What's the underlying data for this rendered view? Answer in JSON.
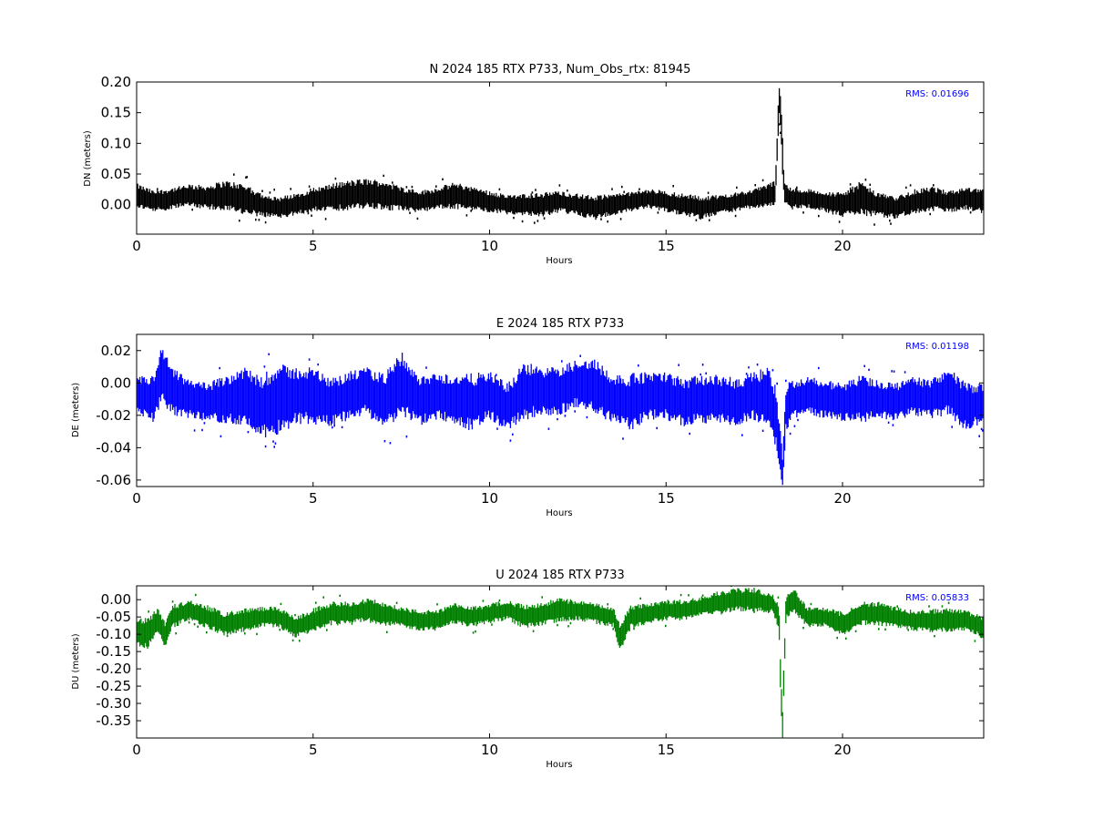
{
  "chart_data": [
    {
      "type": "scatter",
      "title": "N 2024 185 RTX  P733, Num_Obs_rtx: 81945",
      "xlabel": "Hours",
      "ylabel": "DN (meters)",
      "xlim": [
        0,
        24
      ],
      "ylim": [
        -0.048,
        0.2
      ],
      "xticks": [
        "0",
        "5",
        "10",
        "15",
        "20"
      ],
      "yticks": [
        "0.20",
        "0.15",
        "0.10",
        "0.05",
        "0.00"
      ],
      "annotation": "RMS:  0.01696",
      "color": "#000000",
      "series": [
        {
          "x": [
            0,
            0.5,
            1,
            1.5,
            2,
            2.5,
            3,
            3.5,
            4,
            4.5,
            5,
            5.5,
            6,
            6.5,
            7,
            7.5,
            8,
            8.5,
            9,
            9.5,
            10,
            10.5,
            11,
            11.5,
            12,
            12.5,
            13,
            13.5,
            14,
            14.5,
            15,
            15.5,
            16,
            16.5,
            17,
            17.5,
            17.9,
            18.1,
            18.2,
            18.25,
            18.3,
            18.35,
            18.5,
            19,
            19.5,
            20,
            20.5,
            21,
            21.5,
            22,
            22.5,
            23,
            23.5,
            24
          ],
          "y": [
            0.015,
            0.005,
            0.01,
            0.015,
            0.012,
            0.015,
            0.01,
            0.0,
            -0.005,
            0.0,
            0.008,
            0.012,
            0.015,
            0.018,
            0.015,
            0.01,
            0.005,
            0.01,
            0.015,
            0.01,
            0.005,
            0.0,
            0.0,
            0.0,
            0.005,
            0.0,
            -0.005,
            0.0,
            0.005,
            0.01,
            0.005,
            0.0,
            -0.005,
            0.0,
            0.005,
            0.01,
            0.015,
            0.02,
            0.17,
            0.15,
            0.08,
            0.02,
            0.01,
            0.01,
            0.005,
            0.0,
            0.01,
            0.0,
            -0.005,
            0.005,
            0.01,
            0.005,
            0.01,
            0.005
          ],
          "spread": [
            0.02,
            0.018,
            0.018,
            0.018,
            0.02,
            0.025,
            0.025,
            0.02,
            0.018,
            0.018,
            0.02,
            0.022,
            0.025,
            0.025,
            0.025,
            0.02,
            0.018,
            0.018,
            0.022,
            0.02,
            0.018,
            0.016,
            0.018,
            0.02,
            0.018,
            0.018,
            0.02,
            0.018,
            0.016,
            0.016,
            0.018,
            0.018,
            0.02,
            0.016,
            0.016,
            0.016,
            0.02,
            0.02,
            0.03,
            0.03,
            0.04,
            0.02,
            0.018,
            0.016,
            0.018,
            0.02,
            0.028,
            0.02,
            0.018,
            0.02,
            0.02,
            0.018,
            0.018,
            0.02
          ]
        }
      ]
    },
    {
      "type": "scatter",
      "title": "E 2024 185 RTX  P733",
      "xlabel": "Hours",
      "ylabel": "DE (meters)",
      "xlim": [
        0,
        24
      ],
      "ylim": [
        -0.064,
        0.03
      ],
      "xticks": [
        "0",
        "5",
        "10",
        "15",
        "20"
      ],
      "yticks": [
        "0.02",
        "0.00",
        "-0.02",
        "-0.04",
        "-0.06"
      ],
      "annotation": "RMS:  0.01198",
      "color": "#0000ff",
      "series": [
        {
          "x": [
            0,
            0.5,
            0.7,
            1,
            1.5,
            2,
            2.5,
            3,
            3.5,
            4,
            4.5,
            5,
            5.5,
            6,
            6.5,
            7,
            7.5,
            8,
            8.5,
            9,
            9.5,
            10,
            10.5,
            11,
            11.5,
            12,
            12.5,
            13,
            13.5,
            14,
            14.5,
            15,
            15.5,
            16,
            16.5,
            17,
            17.5,
            17.9,
            18.1,
            18.25,
            18.3,
            18.4,
            18.6,
            19,
            19.5,
            20,
            20.5,
            21,
            21.5,
            22,
            22.5,
            23,
            23.5,
            24
          ],
          "y": [
            -0.008,
            -0.01,
            0.005,
            -0.005,
            -0.01,
            -0.012,
            -0.01,
            -0.008,
            -0.015,
            -0.01,
            -0.008,
            -0.008,
            -0.012,
            -0.008,
            -0.005,
            -0.012,
            0.0,
            -0.012,
            -0.008,
            -0.01,
            -0.012,
            -0.008,
            -0.015,
            -0.005,
            -0.005,
            -0.005,
            0.0,
            -0.002,
            -0.01,
            -0.012,
            -0.008,
            -0.008,
            -0.012,
            -0.01,
            -0.01,
            -0.012,
            -0.008,
            -0.01,
            -0.02,
            -0.045,
            -0.055,
            -0.015,
            -0.01,
            -0.008,
            -0.01,
            -0.012,
            -0.01,
            -0.01,
            -0.012,
            -0.008,
            -0.01,
            -0.005,
            -0.015,
            -0.012
          ],
          "spread": [
            0.012,
            0.015,
            0.018,
            0.015,
            0.012,
            0.012,
            0.015,
            0.018,
            0.02,
            0.022,
            0.018,
            0.018,
            0.015,
            0.015,
            0.015,
            0.018,
            0.02,
            0.015,
            0.015,
            0.015,
            0.018,
            0.015,
            0.015,
            0.018,
            0.015,
            0.015,
            0.015,
            0.018,
            0.015,
            0.018,
            0.015,
            0.015,
            0.015,
            0.015,
            0.015,
            0.015,
            0.015,
            0.02,
            0.02,
            0.015,
            0.01,
            0.015,
            0.012,
            0.012,
            0.012,
            0.012,
            0.015,
            0.012,
            0.012,
            0.012,
            0.012,
            0.015,
            0.015,
            0.012
          ]
        }
      ]
    },
    {
      "type": "scatter",
      "title": "U 2024 185 RTX  P733",
      "xlabel": "Hours",
      "ylabel": "DU (meters)",
      "xlim": [
        0,
        24
      ],
      "ylim": [
        -0.4,
        0.04
      ],
      "xticks": [
        "0",
        "5",
        "10",
        "15",
        "20"
      ],
      "yticks": [
        "0.00",
        "-0.05",
        "-0.10",
        "-0.15",
        "-0.20",
        "-0.25",
        "-0.30",
        "-0.35"
      ],
      "annotation": "RMS:  0.05833",
      "color": "#008000",
      "series": [
        {
          "x": [
            0,
            0.3,
            0.6,
            0.8,
            1,
            1.5,
            2,
            2.5,
            3,
            3.5,
            4,
            4.5,
            5,
            5.5,
            6,
            6.5,
            7,
            7.5,
            8,
            8.5,
            9,
            9.5,
            10,
            10.5,
            11,
            11.5,
            12,
            12.5,
            13,
            13.5,
            13.7,
            14,
            14.5,
            15,
            15.5,
            16,
            16.5,
            17,
            17.5,
            18,
            18.2,
            18.25,
            18.3,
            18.4,
            18.6,
            19,
            19.5,
            20,
            20.5,
            21,
            21.5,
            22,
            22.5,
            23,
            23.5,
            24
          ],
          "y": [
            -0.09,
            -0.1,
            -0.06,
            -0.1,
            -0.05,
            -0.03,
            -0.05,
            -0.07,
            -0.06,
            -0.05,
            -0.05,
            -0.08,
            -0.06,
            -0.04,
            -0.04,
            -0.03,
            -0.04,
            -0.05,
            -0.06,
            -0.06,
            -0.04,
            -0.05,
            -0.04,
            -0.03,
            -0.05,
            -0.04,
            -0.03,
            -0.03,
            -0.04,
            -0.05,
            -0.11,
            -0.05,
            -0.04,
            -0.03,
            -0.03,
            -0.02,
            -0.01,
            0.0,
            0.0,
            -0.01,
            -0.05,
            -0.25,
            -0.36,
            -0.02,
            0.0,
            -0.05,
            -0.05,
            -0.07,
            -0.04,
            -0.04,
            -0.05,
            -0.06,
            -0.06,
            -0.06,
            -0.06,
            -0.08
          ],
          "spread": [
            0.04,
            0.05,
            0.04,
            0.04,
            0.035,
            0.03,
            0.035,
            0.035,
            0.035,
            0.03,
            0.03,
            0.03,
            0.035,
            0.035,
            0.035,
            0.035,
            0.035,
            0.03,
            0.03,
            0.03,
            0.03,
            0.03,
            0.03,
            0.03,
            0.035,
            0.035,
            0.035,
            0.03,
            0.03,
            0.03,
            0.04,
            0.035,
            0.03,
            0.03,
            0.03,
            0.03,
            0.035,
            0.035,
            0.035,
            0.03,
            0.04,
            0.05,
            0.05,
            0.04,
            0.04,
            0.03,
            0.03,
            0.035,
            0.035,
            0.035,
            0.03,
            0.03,
            0.035,
            0.035,
            0.03,
            0.035
          ]
        }
      ]
    }
  ]
}
